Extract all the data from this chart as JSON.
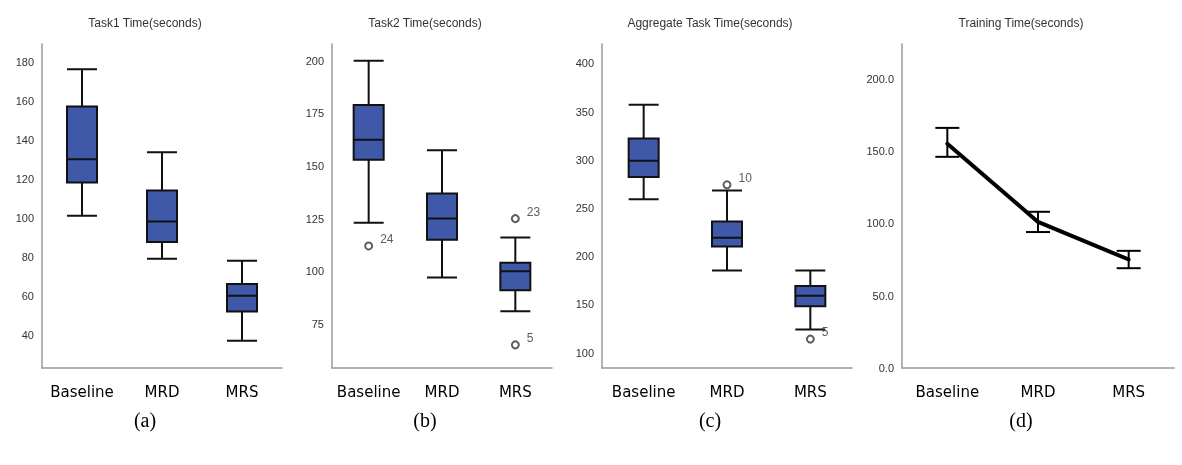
{
  "chart_data": [
    {
      "type": "box",
      "title": "Task1 Time(seconds)",
      "categories": [
        "Baseline",
        "MRD",
        "MRS"
      ],
      "color": "#3f58a8",
      "ylim": [
        23,
        189
      ],
      "yticks": [
        40,
        60,
        80,
        100,
        120,
        140,
        160,
        180
      ],
      "grid": false,
      "boxes": [
        {
          "low": 101,
          "q1": 118,
          "median": 130,
          "q3": 157,
          "high": 176
        },
        {
          "low": 79,
          "q1": 87.5,
          "median": 98,
          "q3": 114,
          "high": 133.5
        },
        {
          "low": 37,
          "q1": 52,
          "median": 60,
          "q3": 66,
          "high": 78
        }
      ],
      "annotations": [
        "(a)"
      ]
    },
    {
      "type": "box",
      "title": "Task2 Time(seconds)",
      "categories": [
        "Baseline",
        "MRD",
        "MRS"
      ],
      "color": "#3f58a8",
      "ylim": [
        54,
        208
      ],
      "yticks": [
        75,
        100,
        125,
        150,
        175,
        200
      ],
      "grid": false,
      "boxes": [
        {
          "low": 123,
          "q1": 153,
          "median": 162.5,
          "q3": 179,
          "high": 200,
          "outliers": [
            112
          ]
        },
        {
          "low": 97,
          "q1": 115,
          "median": 125,
          "q3": 137,
          "high": 157.5
        },
        {
          "low": 81,
          "q1": 91,
          "median": 100,
          "q3": 104,
          "high": 116,
          "outliers": [
            125,
            65
          ]
        }
      ],
      "annotations": [
        "24",
        "23",
        "5",
        "(b)"
      ]
    },
    {
      "type": "box",
      "title": "Aggregate Task Time(seconds)",
      "categories": [
        "Baseline",
        "MRD",
        "MRS"
      ],
      "color": "#3f58a8",
      "ylim": [
        84,
        420
      ],
      "yticks": [
        100,
        150,
        200,
        250,
        300,
        350,
        400
      ],
      "grid": false,
      "boxes": [
        {
          "low": 259,
          "q1": 282,
          "median": 299,
          "q3": 322,
          "high": 357
        },
        {
          "low": 185,
          "q1": 210,
          "median": 219,
          "q3": 236,
          "high": 268,
          "outliers": [
            274
          ]
        },
        {
          "low": 124,
          "q1": 148,
          "median": 159,
          "q3": 169,
          "high": 185,
          "outliers": [
            114
          ]
        }
      ],
      "annotations": [
        "10",
        "5",
        "(c)"
      ]
    },
    {
      "type": "line",
      "title": "Training Time(seconds)",
      "categories": [
        "Baseline",
        "MRD",
        "MRS"
      ],
      "values": [
        155,
        101,
        75
      ],
      "errors": [
        [
          146,
          166
        ],
        [
          94,
          108
        ],
        [
          69,
          81
        ]
      ],
      "color": "#000000",
      "marker": "none",
      "ylim": [
        0,
        224
      ],
      "yticks": [
        {
          "value": 0,
          "label": "0.0"
        },
        {
          "value": 50,
          "label": "50.0"
        },
        {
          "value": 100,
          "label": "100.0"
        },
        {
          "value": 150,
          "label": "150.0"
        },
        {
          "value": 200,
          "label": "200.0"
        }
      ],
      "grid": false,
      "annotations": [
        "(d)"
      ]
    }
  ]
}
